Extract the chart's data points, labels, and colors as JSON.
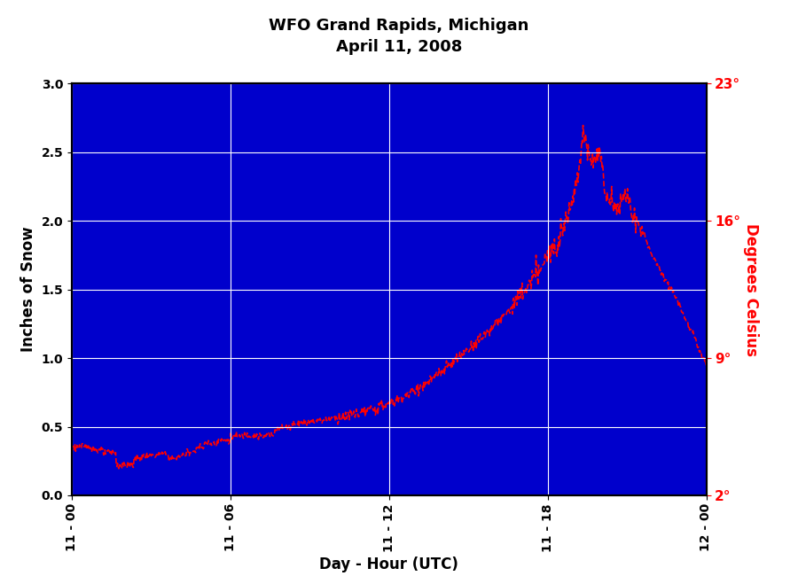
{
  "title_line1": "WFO Grand Rapids, Michigan",
  "title_line2": "April 11, 2008",
  "xlabel": "Day - Hour (UTC)",
  "ylabel_left": "Inches of Snow",
  "ylabel_right": "Degrees Celsius",
  "line_color": "#FF0000",
  "axes_bg_color": "#0000CC",
  "ylim_left": [
    0.0,
    3.0
  ],
  "ylim_right": [
    2,
    23
  ],
  "yticks_left": [
    0.0,
    0.5,
    1.0,
    1.5,
    2.0,
    2.5,
    3.0
  ],
  "yticks_right_vals": [
    2,
    9,
    16,
    23
  ],
  "yticks_right_labels": [
    "2°",
    "9°",
    "16°",
    "23°"
  ],
  "grid_color": "#FFFFFF",
  "outer_bg": "#FFFFFF",
  "x_tick_positions": [
    0,
    36,
    72,
    108,
    144
  ],
  "x_tick_labels": [
    "11 - 00",
    "11 - 06",
    "11 - 12",
    "11 - 18",
    "12 - 00"
  ],
  "xlim": [
    0,
    144
  ]
}
